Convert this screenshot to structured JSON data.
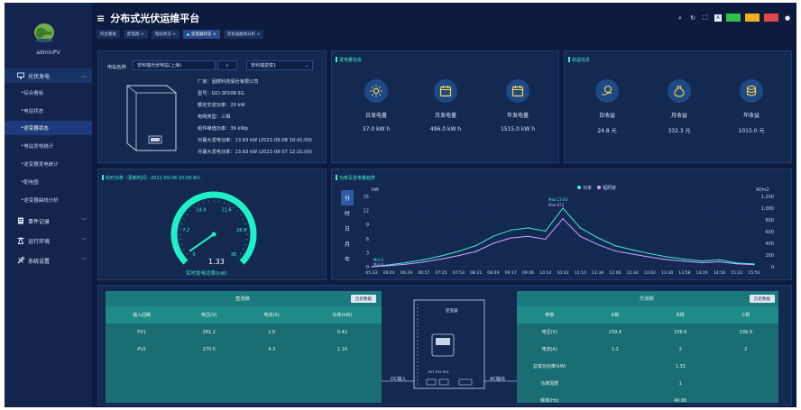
{
  "app": {
    "title": "分布式光伏运维平台",
    "user": "adminPV"
  },
  "colors": {
    "bg": "#0d1b3e",
    "panel": "#14294f",
    "accent": "#3ef0d2",
    "green_btn": "#2fbf4a",
    "yellow_btn": "#f2b01e",
    "red_btn": "#e04848",
    "gauge": "#1ff0c8"
  },
  "sidebar": {
    "groups": [
      {
        "label": "光伏发电",
        "icon": "monitor-icon"
      },
      {
        "label": "事件记录",
        "icon": "document-icon"
      },
      {
        "label": "运行环境",
        "icon": "tower-icon"
      },
      {
        "label": "系统设置",
        "icon": "tools-icon"
      }
    ],
    "items": [
      "综合看板",
      "电站状态",
      "逆变器状态",
      "电站发电统计",
      "逆变器发电统计",
      "配电图",
      "逆变器曲线分析"
    ]
  },
  "tabs": [
    "综合看板",
    "配电图",
    "电站状态",
    "逆变器状态",
    "逆变器曲线分析"
  ],
  "toolbar": {
    "btn1": "",
    "btn2": "",
    "btn3": ""
  },
  "device": {
    "station_label": "电站名称",
    "station_value": "安科瑞光伏电站(上海)",
    "inverter_value": "安科瑞逆变1",
    "rows": [
      "厂家：固德科技股份有限公司",
      "型号：GCI-3P20K-5G",
      "额定交流功率：20 kW",
      "电网类型：三相",
      "组件峰值功率：36 kWp",
      "日最大发电功率：13.63 kW (2021-09-08 10:41:00)",
      "月最大发电功率：13.63 kW (2021-09-07 12:21:00)"
    ]
  },
  "energy": {
    "title": "发电量信息",
    "items": [
      {
        "label": "日发电量",
        "value": "37.0 kW h",
        "icon": "sun-icon"
      },
      {
        "label": "月发电量",
        "value": "496.0 kW h",
        "icon": "calendar-icon"
      },
      {
        "label": "年发电量",
        "value": "1515.0 kW h",
        "icon": "calendar-icon"
      }
    ]
  },
  "income": {
    "title": "收益信息",
    "items": [
      {
        "label": "日收益",
        "value": "24.8 元",
        "icon": "coin-hand-icon"
      },
      {
        "label": "月收益",
        "value": "332.3 元",
        "icon": "money-bag-icon"
      },
      {
        "label": "年收益",
        "value": "1015.0 元",
        "icon": "coin-stack-icon"
      }
    ]
  },
  "gauge": {
    "title": "实时功率（更新时间：2021-09-08 10:09:40）",
    "value": "1.33",
    "value_num": 1.33,
    "max": 36,
    "ticks": [
      "0",
      "7.2",
      "14.4",
      "21.6",
      "28.8",
      "36"
    ],
    "caption": "实时发电功率(kW)"
  },
  "trend": {
    "title": "功率及发电量趋势",
    "side_tabs": [
      "分",
      "时",
      "日",
      "月",
      "年"
    ],
    "left_unit": "kW",
    "right_unit": "W/m2",
    "legend": [
      "功率",
      "辐照度"
    ]
  },
  "chart_data": {
    "type": "line",
    "x": [
      "05:33",
      "06:01",
      "06:29",
      "06:57",
      "07:25",
      "07:53",
      "08:21",
      "08:49",
      "09:17",
      "09:46",
      "10:14",
      "10:42",
      "11:10",
      "11:38",
      "12:06",
      "12:34",
      "13:02",
      "13:30",
      "13:58",
      "14:26",
      "14:54",
      "15:22",
      "15:50"
    ],
    "left_ticks": [
      "0",
      "3",
      "6",
      "9",
      "12",
      "15"
    ],
    "right_ticks": [
      "0",
      "200",
      "400",
      "600",
      "800",
      "1,000",
      "1,200"
    ],
    "ylim": [
      0,
      15
    ],
    "y2lim": [
      0,
      1200
    ],
    "series": [
      {
        "name": "功率",
        "axis": "left",
        "color": "#3ef0d2",
        "values": [
          0,
          0.4,
          0.9,
          1.5,
          2.3,
          3.3,
          4.5,
          6.5,
          7.8,
          8.3,
          7.6,
          12.5,
          8.3,
          6.2,
          4.5,
          3.6,
          2.8,
          2.1,
          1.6,
          1.2,
          1.5,
          0.8,
          0.6
        ]
      },
      {
        "name": "辐照度",
        "axis": "right",
        "color": "#c9a8ff",
        "values": [
          0,
          20,
          45,
          80,
          130,
          190,
          260,
          400,
          490,
          520,
          470,
          820,
          520,
          380,
          270,
          215,
          165,
          120,
          95,
          70,
          85,
          50,
          35
        ]
      }
    ],
    "annotations": [
      "Max:13.63",
      "Max:873",
      "Min:0",
      "Min:0"
    ]
  },
  "dc": {
    "title": "直流侧",
    "history_btn": "历史数据",
    "headers": [
      "输入回路",
      "电压(V)",
      "电流(A)",
      "功率(kW)"
    ],
    "rows": [
      [
        "PV1",
        "261.2",
        "1.6",
        "0.42"
      ],
      [
        "PV2",
        "270.5",
        "4.3",
        "1.16"
      ]
    ]
  },
  "ac": {
    "title": "交流侧",
    "history_btn": "历史数据",
    "headers": [
      "参数",
      "A相",
      "B相",
      "C相"
    ],
    "rows": [
      [
        "电压(V)",
        "239.4",
        "236.6",
        "236.9"
      ],
      [
        "电流(A)",
        "1.3",
        "2",
        "2"
      ]
    ],
    "single_rows": [
      [
        "总有功功率(kW)",
        "1.33"
      ],
      [
        "功率因数",
        "1"
      ],
      [
        "频率(Hz)",
        "49.95"
      ]
    ]
  },
  "diagram": {
    "center": "逆变器",
    "dc_label": "DC输入",
    "ac_label": "AC输出",
    "pins": "PV1 PV2 PV3"
  }
}
